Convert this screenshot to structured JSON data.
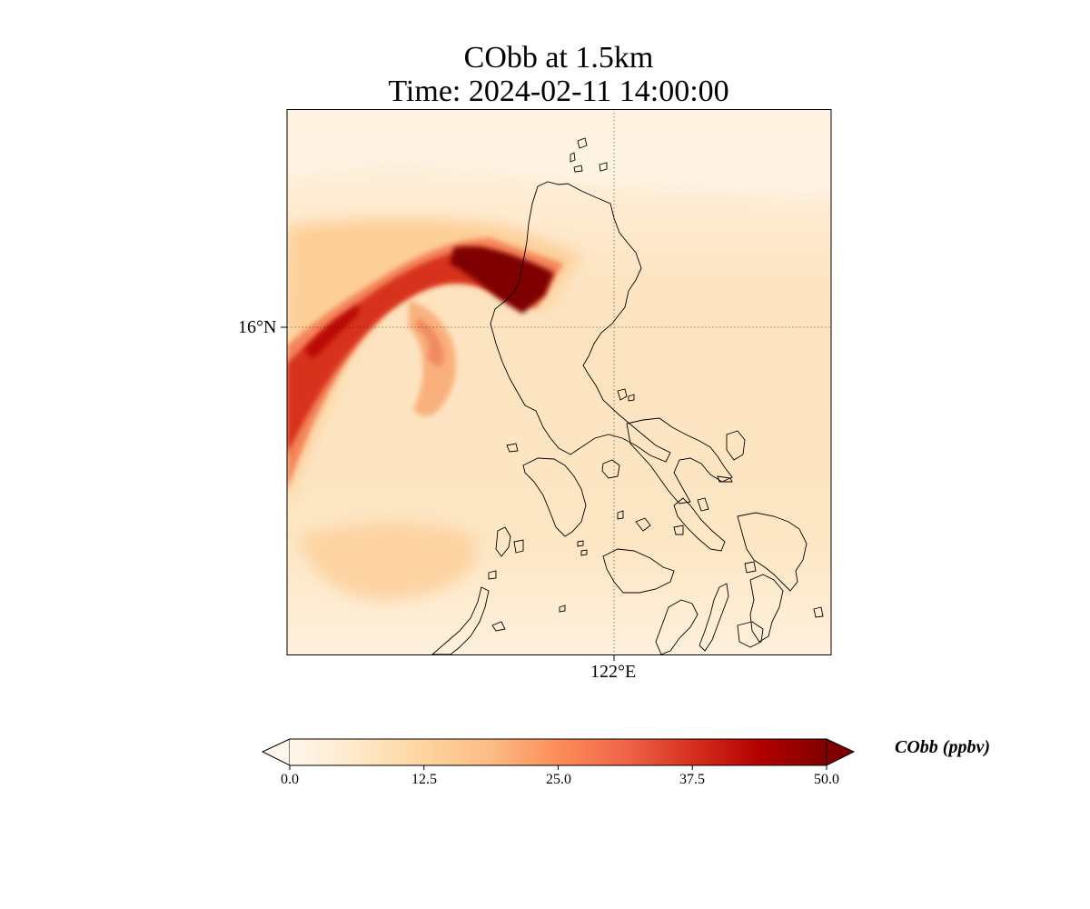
{
  "title": {
    "line1": "CObb at 1.5km",
    "line2": "Time: 2024-02-11 14:00:00"
  },
  "axes": {
    "lat_tick_label": "16°N",
    "lon_tick_label": "122°E",
    "gridlines": "dotted"
  },
  "colorbar": {
    "label": "CObb (ppbv)",
    "ticks": [
      "0.0",
      "12.5",
      "25.0",
      "37.5",
      "50.0"
    ],
    "min": 0,
    "max": 50,
    "extend": "both",
    "colormap": "OrRd",
    "colors": [
      "#fff7ec",
      "#fee8c8",
      "#fdd49e",
      "#fdbb84",
      "#fc8d59",
      "#ef6548",
      "#d7301f",
      "#b30000",
      "#7f0000"
    ]
  },
  "map": {
    "region": "Luzon, Philippines",
    "background_color": "#fde6c4",
    "plume_max_color": "#7f0000"
  }
}
